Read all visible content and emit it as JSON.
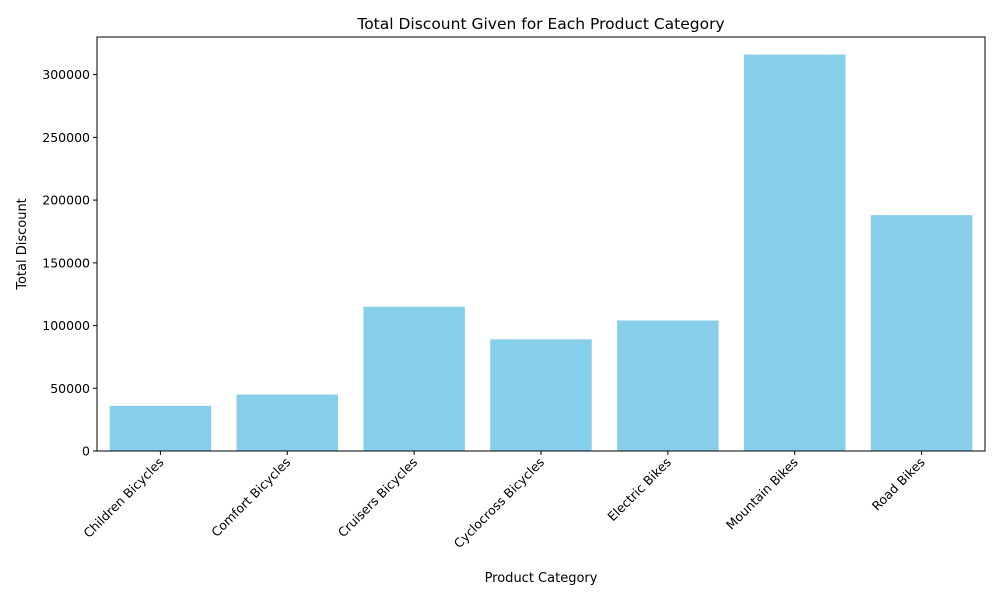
{
  "chart_data": {
    "type": "bar",
    "title": "Total Discount Given for Each Product Category",
    "xlabel": "Product Category",
    "ylabel": "Total Discount",
    "categories": [
      "Children Bicycles",
      "Comfort Bicycles",
      "Cruisers Bicycles",
      "Cyclocross Bicycles",
      "Electric Bikes",
      "Mountain Bikes",
      "Road Bikes"
    ],
    "values": [
      36000,
      45000,
      115000,
      89000,
      104000,
      316000,
      188000
    ],
    "ylim": [
      0,
      330000
    ],
    "yticks": [
      0,
      50000,
      100000,
      150000,
      200000,
      250000,
      300000
    ],
    "ytick_labels": [
      "0",
      "50000",
      "100000",
      "150000",
      "200000",
      "250000",
      "300000"
    ],
    "grid": false,
    "legend": "none",
    "bar_color": "#87ceeb",
    "axis_color": "#000000"
  }
}
